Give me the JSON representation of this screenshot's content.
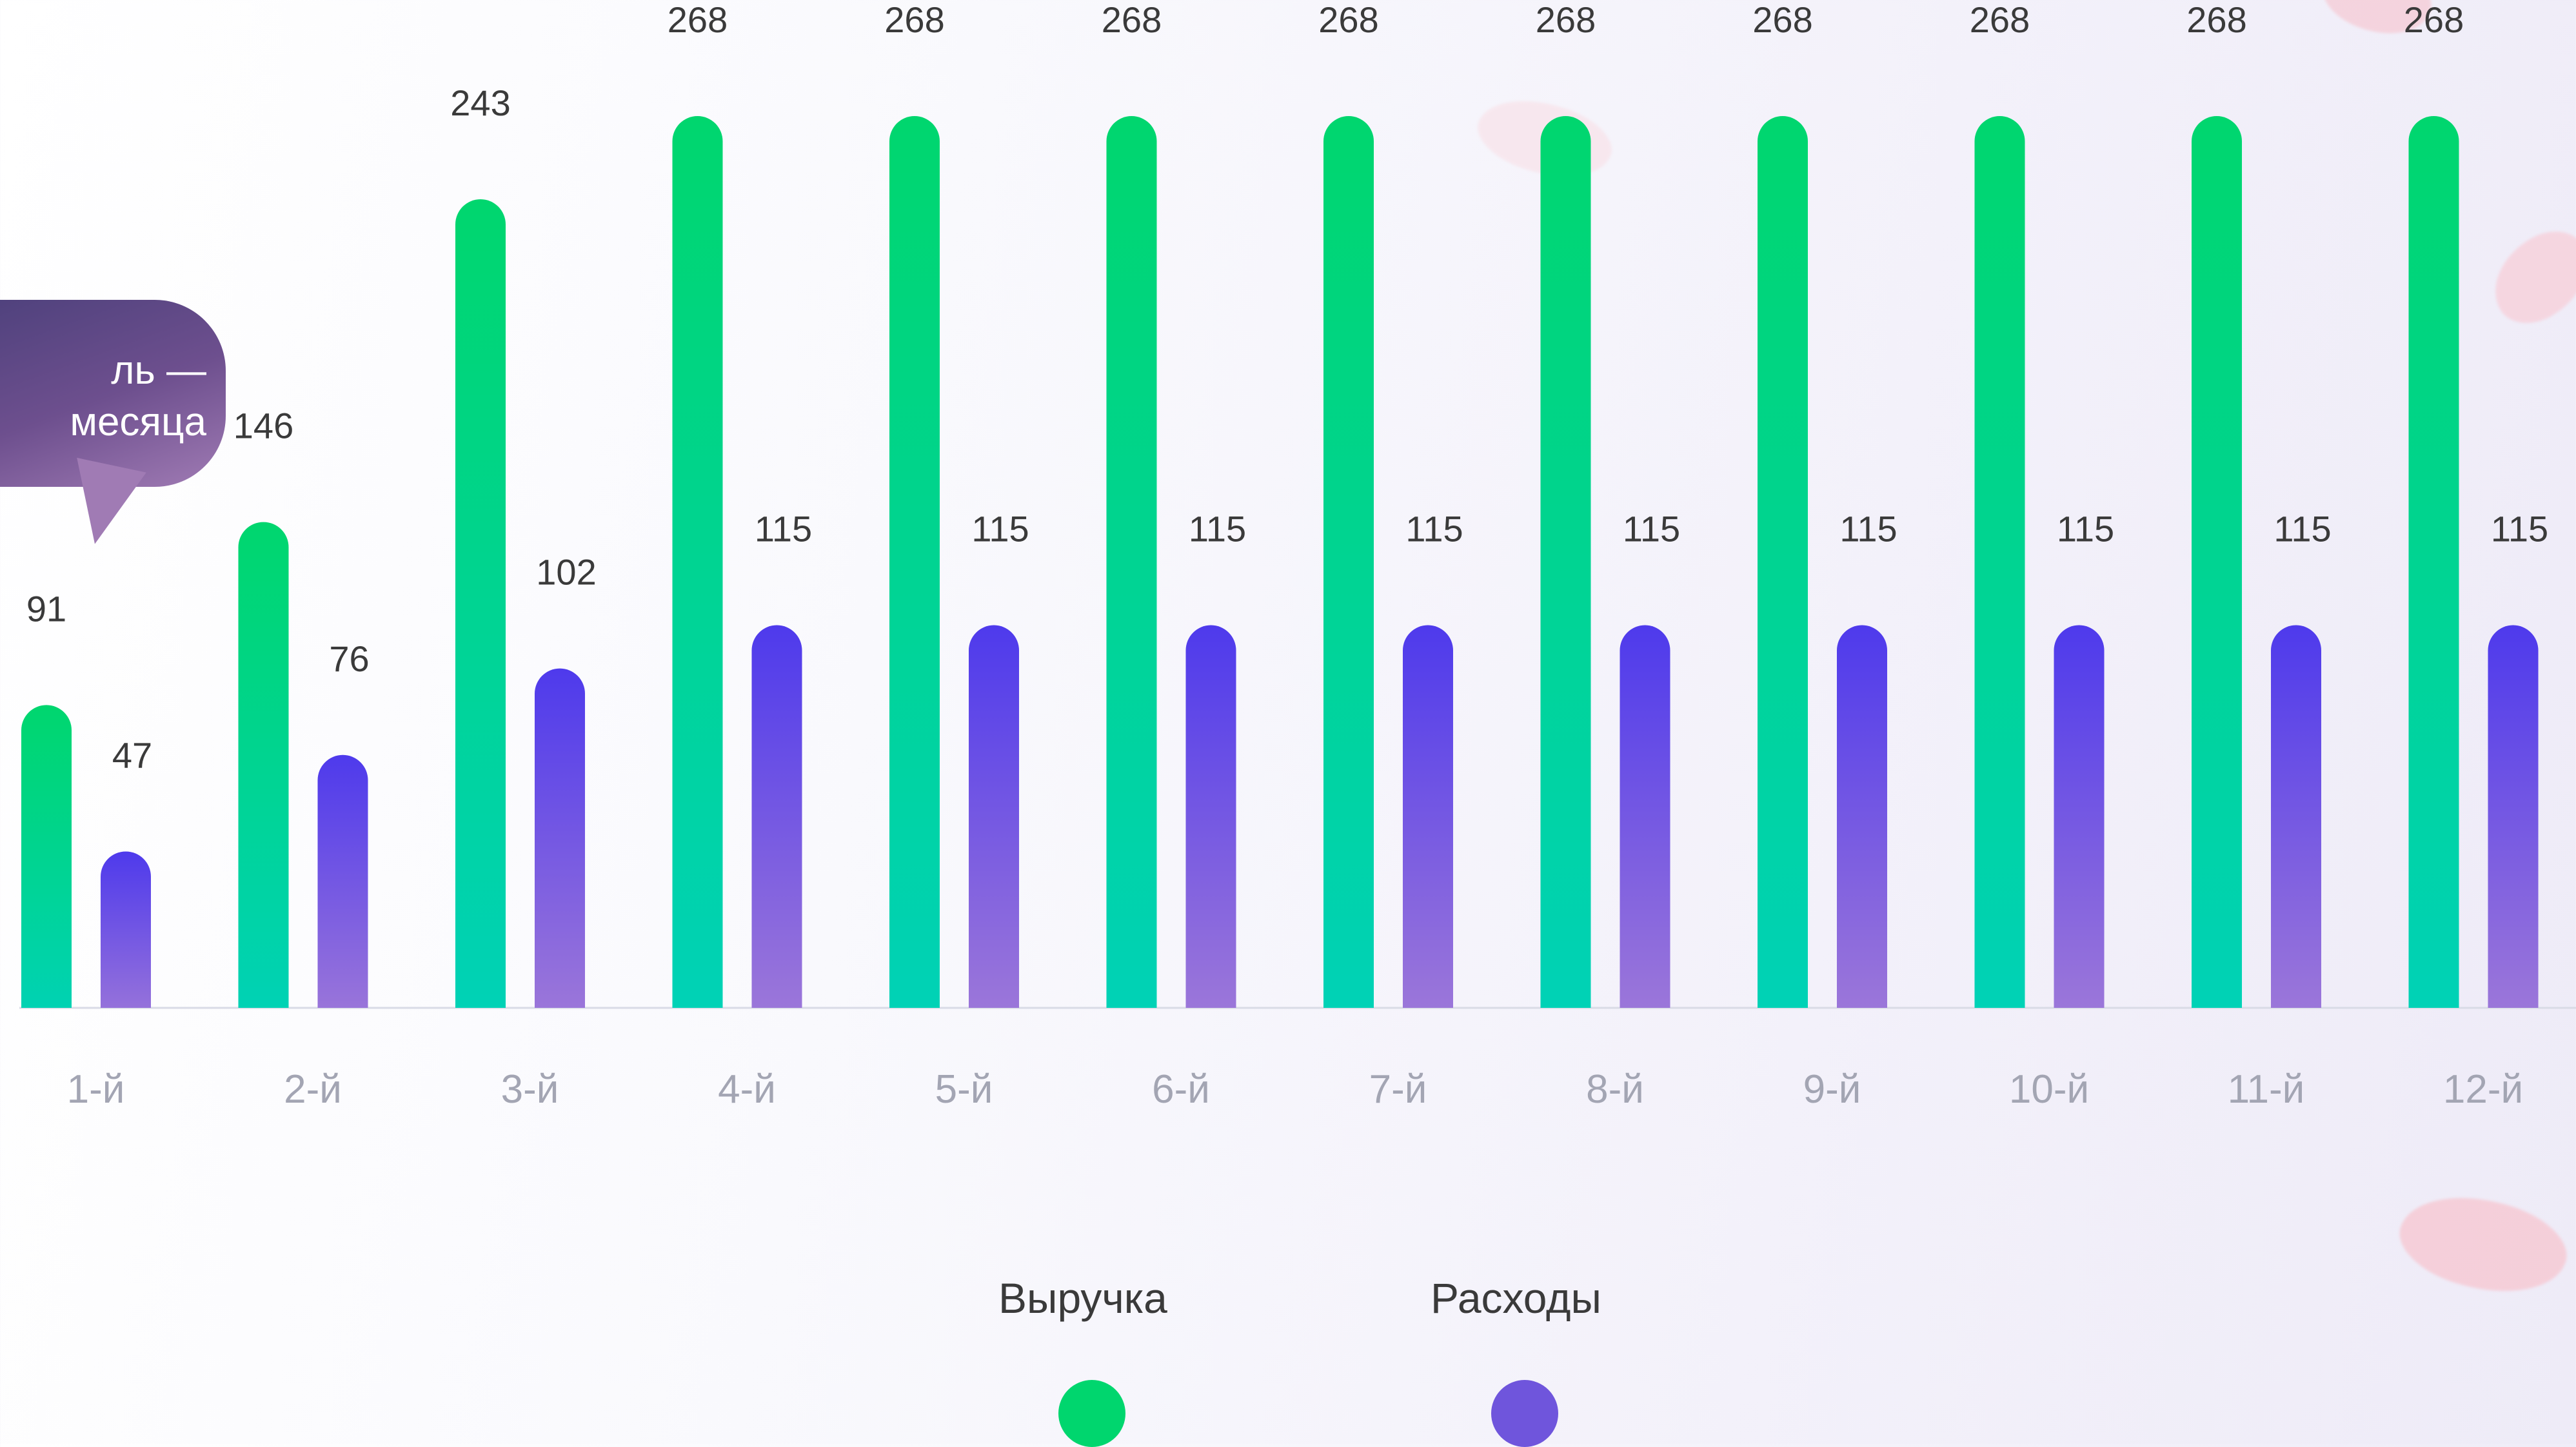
{
  "chart_data": {
    "type": "bar",
    "categories": [
      "1-й",
      "2-й",
      "3-й",
      "4-й",
      "5-й",
      "6-й",
      "7-й",
      "8-й",
      "9-й",
      "10-й",
      "11-й",
      "12-й"
    ],
    "series": [
      {
        "name": "Выручка",
        "values": [
          91,
          146,
          243,
          268,
          268,
          268,
          268,
          268,
          268,
          268,
          268,
          268
        ],
        "color": "#00d66e"
      },
      {
        "name": "Расходы",
        "values": [
          47,
          76,
          102,
          115,
          115,
          115,
          115,
          115,
          115,
          115,
          115,
          115
        ],
        "color": "#5a3ee8"
      }
    ],
    "ylim": [
      0,
      268
    ],
    "grid": false,
    "legend_placement": "bottom-center"
  },
  "tooltip": {
    "line1": "ль —",
    "line2": "месяца"
  },
  "legend": [
    {
      "label": "Выручка",
      "color": "#00d66e"
    },
    {
      "label": "Расходы",
      "color": "#6f55dc"
    }
  ]
}
